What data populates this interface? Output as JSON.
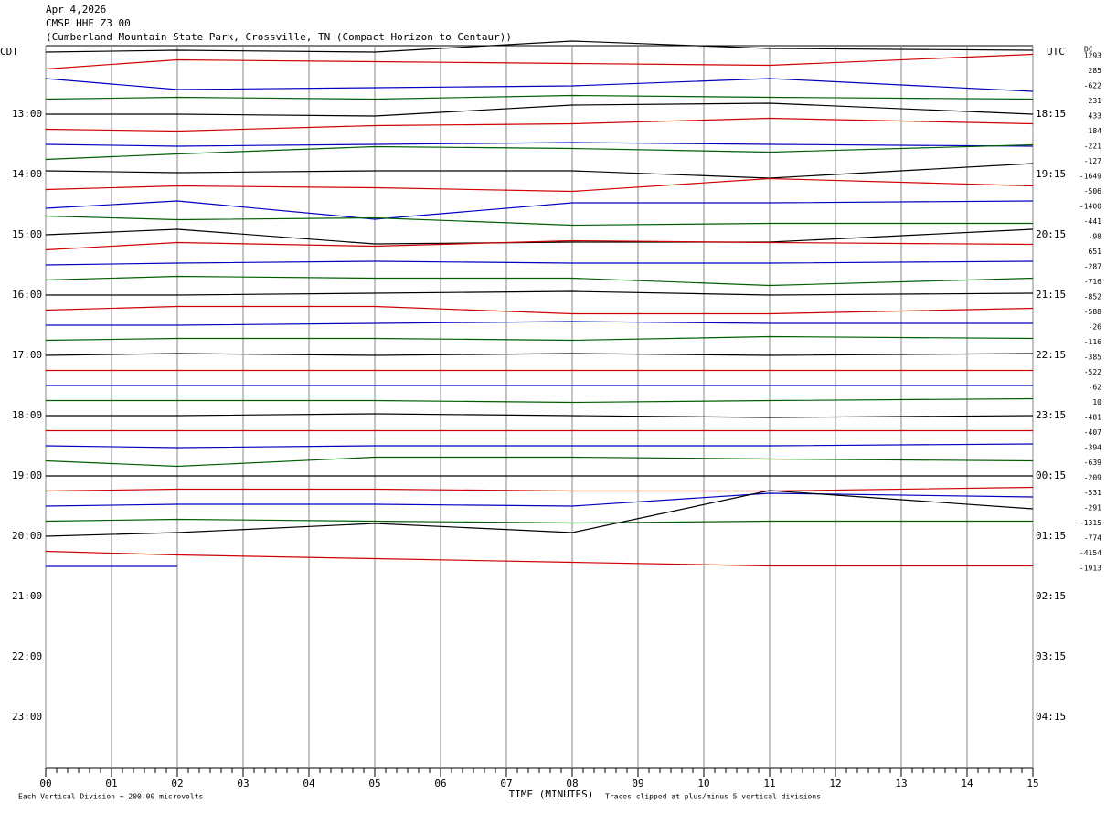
{
  "chart_data": {
    "type": "helicorder",
    "date": "Apr 4,2026",
    "station": "CMSP HHE Z3 00",
    "location": "(Cumberland Mountain State Park, Crossville, TN (Compact Horizon to Centaur))",
    "left_zone": "CDT",
    "right_zone": "UTC",
    "dc_header": "DC",
    "xlabel": "TIME (MINUTES)",
    "scale_note": "Each Vertical Division =  200.00 microvolts",
    "clip_note": "Traces clipped at plus/minus 5 vertical divisions",
    "xlim": [
      0,
      15
    ],
    "xticks": [
      {
        "value": 0,
        "label": "00"
      },
      {
        "value": 1,
        "label": "01"
      },
      {
        "value": 2,
        "label": "02"
      },
      {
        "value": 3,
        "label": "03"
      },
      {
        "value": 4,
        "label": "04"
      },
      {
        "value": 5,
        "label": "05"
      },
      {
        "value": 6,
        "label": "06"
      },
      {
        "value": 7,
        "label": "07"
      },
      {
        "value": 8,
        "label": "08"
      },
      {
        "value": 9,
        "label": "09"
      },
      {
        "value": 10,
        "label": "10"
      },
      {
        "value": 11,
        "label": "11"
      },
      {
        "value": 12,
        "label": "12"
      },
      {
        "value": 13,
        "label": "13"
      },
      {
        "value": 14,
        "label": "14"
      },
      {
        "value": 15,
        "label": "15"
      }
    ],
    "left_labels": [
      "13:00",
      "14:00",
      "15:00",
      "16:00",
      "17:00",
      "18:00",
      "19:00",
      "20:00",
      "21:00",
      "22:00",
      "23:00"
    ],
    "right_labels": [
      "18:15",
      "19:15",
      "20:15",
      "21:15",
      "22:15",
      "23:15",
      "00:15",
      "01:15",
      "02:15",
      "03:15",
      "04:15"
    ],
    "x": [
      0,
      2,
      5,
      8,
      11,
      15
    ],
    "series": [
      {
        "color": "#000000",
        "dc": 1293,
        "values": [
          2,
          4,
          2,
          14,
          6,
          4
        ]
      },
      {
        "color": "#d00000",
        "dc": 285,
        "values": [
          0,
          10,
          8,
          6,
          4,
          16
        ]
      },
      {
        "color": "#0000c0",
        "dc": -622,
        "values": [
          6,
          -6,
          -4,
          -2,
          6,
          -8
        ]
      },
      {
        "color": "#006000",
        "dc": 231,
        "values": [
          0,
          2,
          0,
          4,
          2,
          0
        ]
      },
      {
        "color": "#000000",
        "dc": 433,
        "values": [
          0,
          0,
          -2,
          10,
          12,
          0
        ]
      },
      {
        "color": "#d00000",
        "dc": 184,
        "values": [
          0,
          -2,
          4,
          6,
          12,
          6
        ]
      },
      {
        "color": "#0000c0",
        "dc": -221,
        "values": [
          0,
          -2,
          0,
          2,
          0,
          -2
        ]
      },
      {
        "color": "#006000",
        "dc": -127,
        "values": [
          0,
          6,
          14,
          12,
          8,
          16
        ]
      },
      {
        "color": "#000000",
        "dc": -1649,
        "values": [
          4,
          2,
          4,
          4,
          -4,
          12
        ]
      },
      {
        "color": "#d00000",
        "dc": -506,
        "values": [
          0,
          4,
          2,
          -2,
          12,
          4
        ]
      },
      {
        "color": "#0000c0",
        "dc": -1400,
        "values": [
          -4,
          4,
          -16,
          2,
          2,
          4
        ]
      },
      {
        "color": "#006000",
        "dc": -441,
        "values": [
          4,
          0,
          2,
          -6,
          -4,
          -4
        ]
      },
      {
        "color": "#000000",
        "dc": -98,
        "values": [
          0,
          6,
          -10,
          -8,
          -8,
          6
        ]
      },
      {
        "color": "#d00000",
        "dc": 651,
        "values": [
          0,
          8,
          4,
          10,
          8,
          6
        ]
      },
      {
        "color": "#0000c0",
        "dc": -287,
        "values": [
          0,
          2,
          4,
          2,
          2,
          4
        ]
      },
      {
        "color": "#006000",
        "dc": -716,
        "values": [
          0,
          4,
          2,
          2,
          -6,
          2
        ]
      },
      {
        "color": "#000000",
        "dc": -852,
        "values": [
          0,
          0,
          2,
          4,
          0,
          2
        ]
      },
      {
        "color": "#d00000",
        "dc": -588,
        "values": [
          0,
          4,
          4,
          -4,
          -4,
          2
        ]
      },
      {
        "color": "#0000c0",
        "dc": -26,
        "values": [
          0,
          0,
          2,
          4,
          2,
          2
        ]
      },
      {
        "color": "#006000",
        "dc": -116,
        "values": [
          0,
          2,
          2,
          0,
          4,
          2
        ]
      },
      {
        "color": "#000000",
        "dc": -385,
        "values": [
          0,
          2,
          0,
          2,
          0,
          2
        ]
      },
      {
        "color": "#d00000",
        "dc": -522,
        "values": [
          0,
          0,
          0,
          0,
          0,
          0
        ]
      },
      {
        "color": "#0000c0",
        "dc": -62,
        "values": [
          0,
          0,
          0,
          0,
          0,
          0
        ]
      },
      {
        "color": "#006000",
        "dc": 10,
        "values": [
          0,
          0,
          0,
          -2,
          0,
          2
        ]
      },
      {
        "color": "#000000",
        "dc": -481,
        "values": [
          0,
          0,
          2,
          0,
          -2,
          0
        ]
      },
      {
        "color": "#d00000",
        "dc": -407,
        "values": [
          0,
          0,
          0,
          0,
          0,
          0
        ]
      },
      {
        "color": "#0000c0",
        "dc": -394,
        "values": [
          0,
          -2,
          0,
          0,
          0,
          2
        ]
      },
      {
        "color": "#006000",
        "dc": -639,
        "values": [
          0,
          -6,
          4,
          4,
          2,
          0
        ]
      },
      {
        "color": "#000000",
        "dc": -209,
        "values": [
          0,
          0,
          0,
          0,
          0,
          0
        ]
      },
      {
        "color": "#d00000",
        "dc": -531,
        "values": [
          0,
          2,
          2,
          0,
          0,
          4
        ]
      },
      {
        "color": "#0000c0",
        "dc": -291,
        "values": [
          0,
          2,
          2,
          0,
          14,
          10
        ]
      },
      {
        "color": "#006000",
        "dc": -1315,
        "values": [
          0,
          2,
          0,
          -2,
          0,
          0
        ]
      },
      {
        "color": "#000000",
        "dc": -774,
        "values": [
          0,
          4,
          14,
          4,
          50,
          30
        ]
      },
      {
        "color": "#d00000",
        "dc": -4154,
        "values": [
          0,
          -4,
          -8,
          -12,
          -16,
          -16
        ]
      },
      {
        "color": "#0000c0",
        "dc": -1913,
        "values": [
          0,
          0,
          null,
          null,
          null,
          null
        ]
      }
    ]
  }
}
